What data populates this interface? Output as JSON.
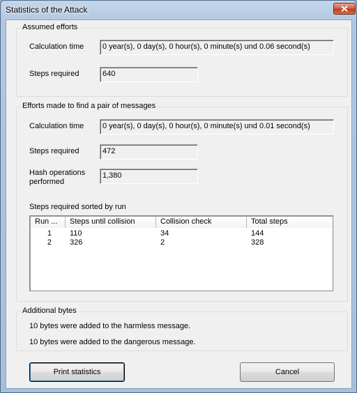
{
  "window": {
    "title": "Statistics of the Attack"
  },
  "assumed_efforts": {
    "group_label": "Assumed efforts",
    "calc_time_label": "Calculation time",
    "calc_time_value": "0 year(s), 0 day(s), 0 hour(s), 0 minute(s) und 0.06 second(s)",
    "steps_label": "Steps required",
    "steps_value": "640"
  },
  "efforts_made": {
    "group_label": "Efforts made to find a pair of messages",
    "calc_time_label": "Calculation time",
    "calc_time_value": "0 year(s), 0 day(s), 0 hour(s), 0 minute(s) und 0.01 second(s)",
    "steps_label": "Steps required",
    "steps_value": "472",
    "hash_label_line1": "Hash operations",
    "hash_label_line2": "performed",
    "hash_value": "1,380",
    "sorted_label": "Steps required sorted by run",
    "table": {
      "columns": [
        "Run ...",
        "Steps until collision",
        "Collision check",
        "Total steps"
      ],
      "rows": [
        [
          "1",
          "110",
          "34",
          "144"
        ],
        [
          "2",
          "326",
          "2",
          "328"
        ]
      ]
    }
  },
  "additional_bytes": {
    "group_label": "Additional bytes",
    "harmless_text": "10 bytes were added to the harmless message.",
    "dangerous_text": "10 bytes were added to the dangerous message."
  },
  "buttons": {
    "print_label": "Print statistics",
    "cancel_label": "Cancel"
  }
}
